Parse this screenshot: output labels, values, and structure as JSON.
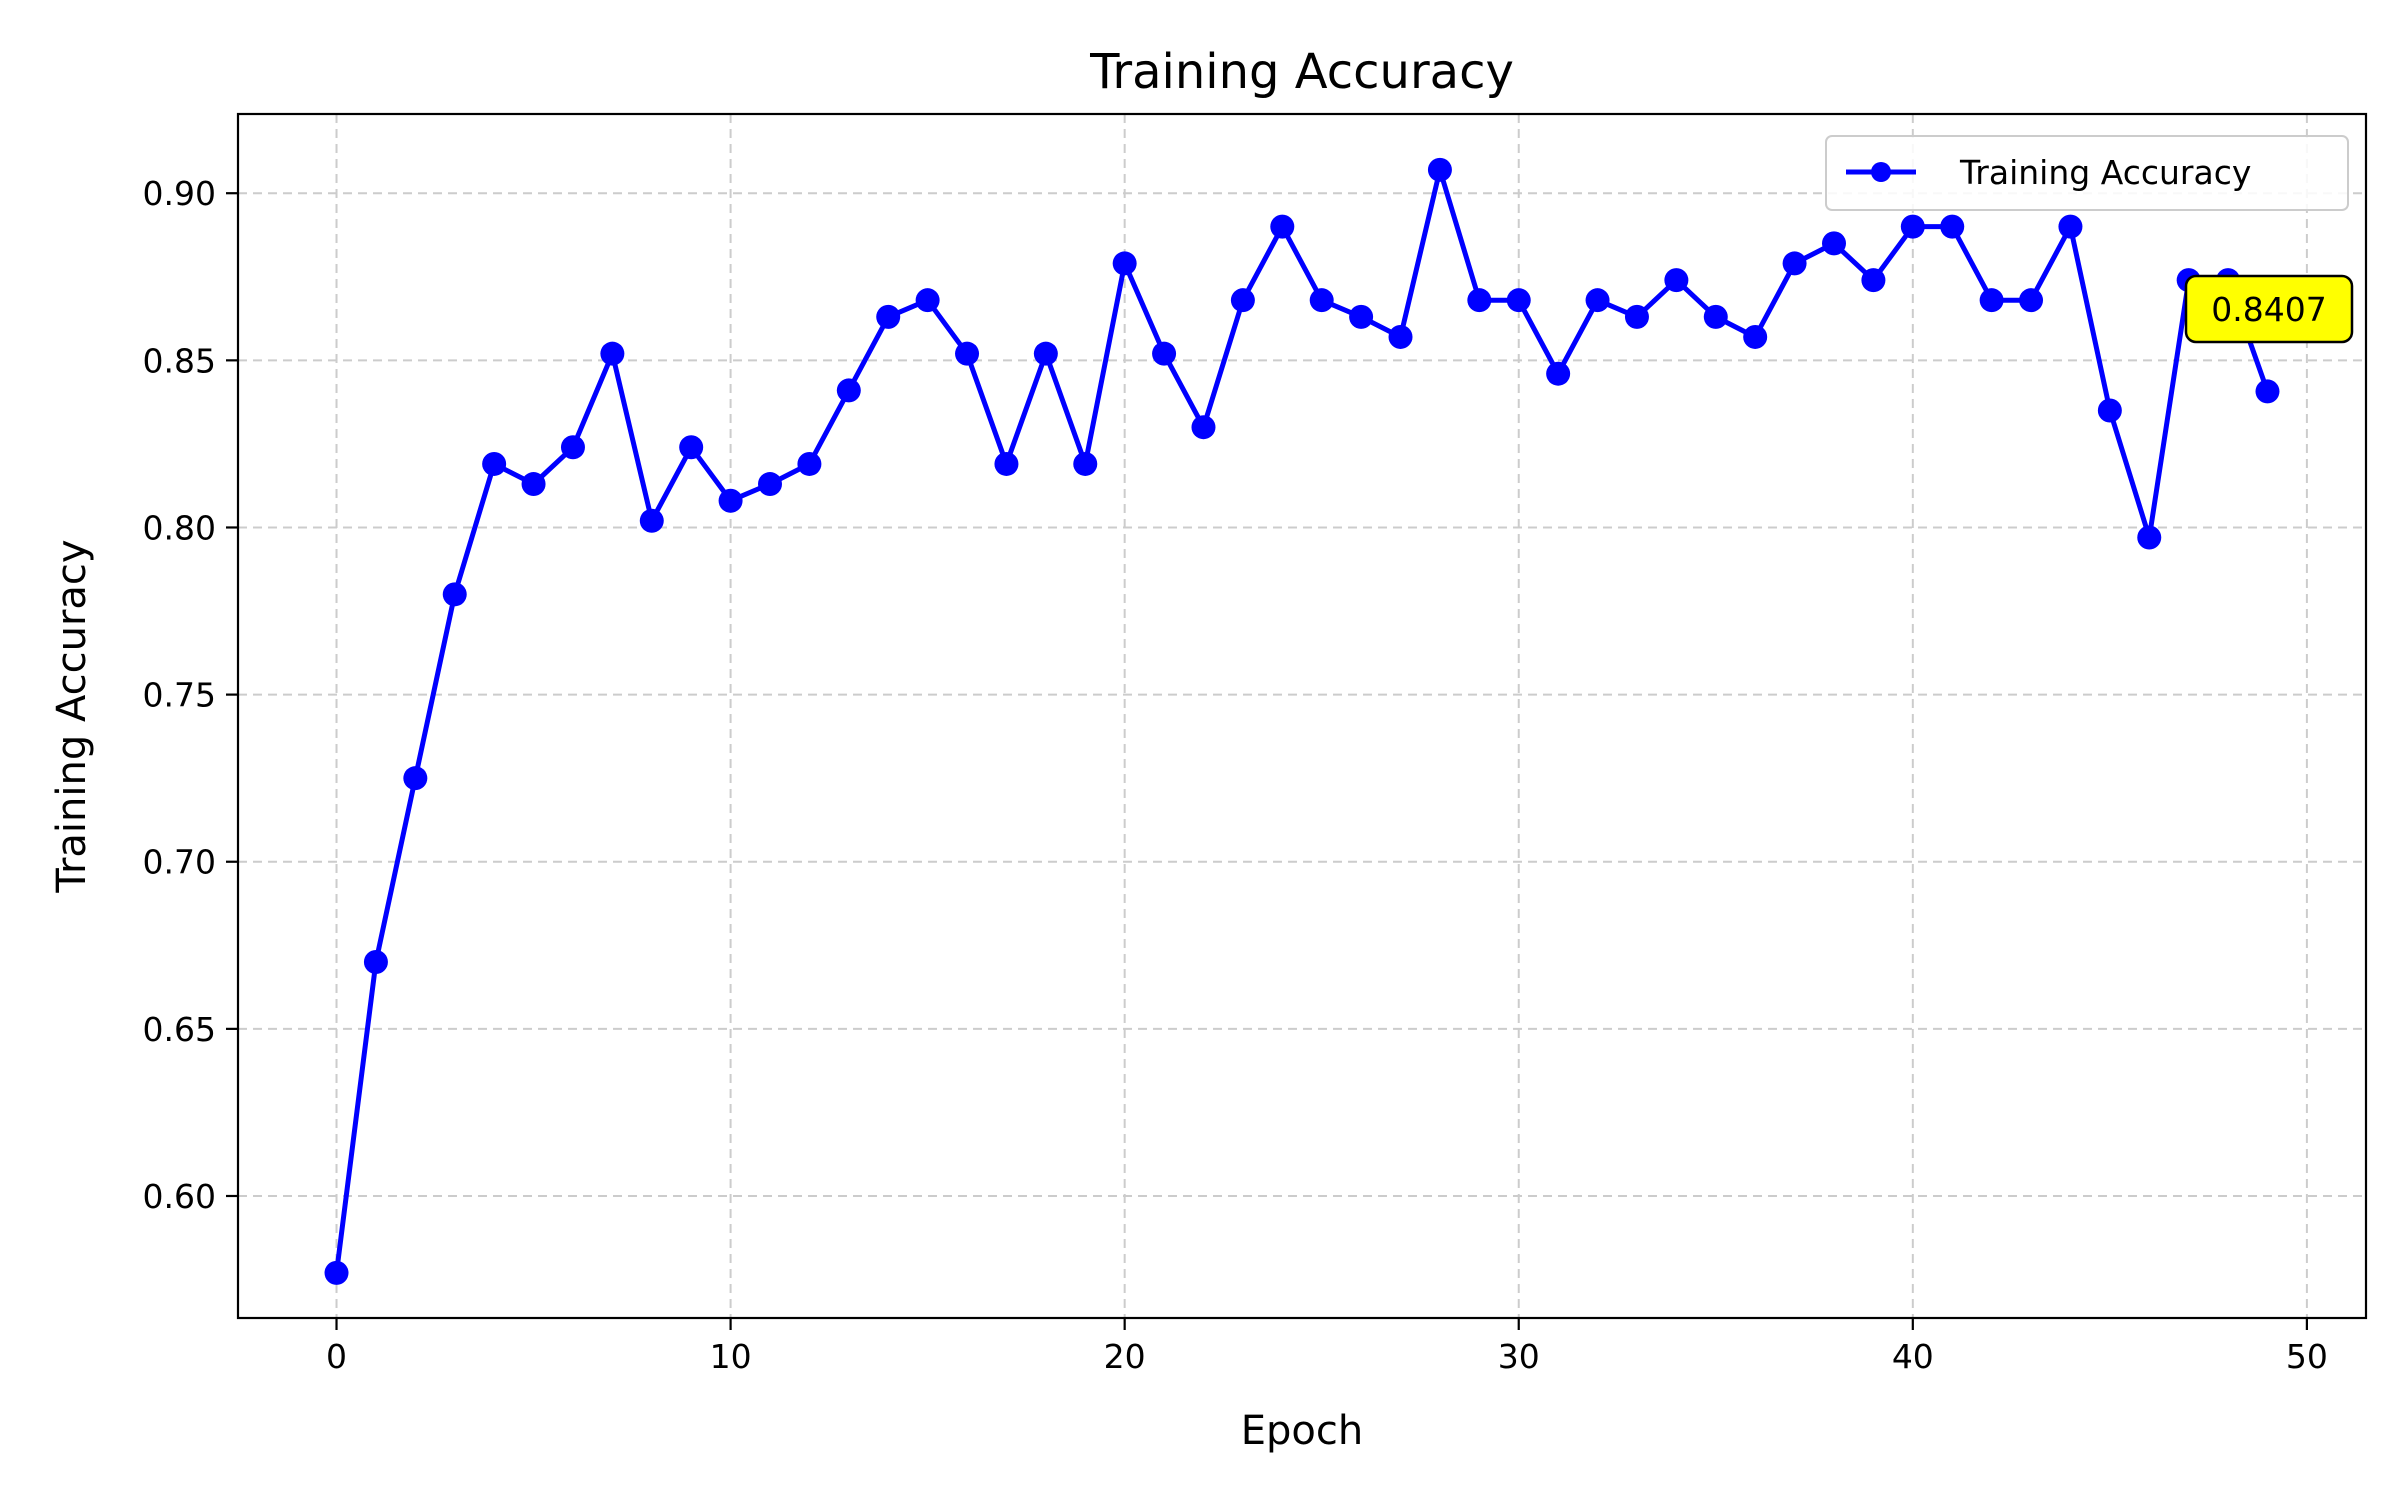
{
  "chart_data": {
    "type": "line",
    "title": "Training Accuracy",
    "xlabel": "Epoch",
    "ylabel": "Training Accuracy",
    "xlim": [
      -2.5,
      51.5
    ],
    "ylim": [
      0.5635,
      0.9237
    ],
    "x_ticks": [
      0,
      10,
      20,
      30,
      40,
      50
    ],
    "x_tick_labels": [
      "0",
      "10",
      "20",
      "30",
      "40",
      "50"
    ],
    "y_ticks": [
      0.6,
      0.65,
      0.7,
      0.75,
      0.8,
      0.85,
      0.9
    ],
    "y_tick_labels": [
      "0.60",
      "0.65",
      "0.70",
      "0.75",
      "0.80",
      "0.85",
      "0.90"
    ],
    "grid": true,
    "legend_position": "top-right",
    "series": [
      {
        "name": "Training Accuracy",
        "color": "#0000ff",
        "marker": "circle",
        "x": [
          0,
          1,
          2,
          3,
          4,
          5,
          6,
          7,
          8,
          9,
          10,
          11,
          12,
          13,
          14,
          15,
          16,
          17,
          18,
          19,
          20,
          21,
          22,
          23,
          24,
          25,
          26,
          27,
          28,
          29,
          30,
          31,
          32,
          33,
          34,
          35,
          36,
          37,
          38,
          39,
          40,
          41,
          42,
          43,
          44,
          45,
          46,
          47,
          48,
          49
        ],
        "values": [
          0.577,
          0.67,
          0.725,
          0.78,
          0.819,
          0.813,
          0.824,
          0.852,
          0.802,
          0.824,
          0.808,
          0.813,
          0.819,
          0.841,
          0.863,
          0.868,
          0.852,
          0.819,
          0.852,
          0.819,
          0.879,
          0.852,
          0.83,
          0.868,
          0.89,
          0.868,
          0.863,
          0.857,
          0.907,
          0.868,
          0.868,
          0.846,
          0.868,
          0.863,
          0.874,
          0.863,
          0.857,
          0.879,
          0.885,
          0.874,
          0.89,
          0.89,
          0.868,
          0.868,
          0.89,
          0.835,
          0.797,
          0.874,
          0.874,
          0.8407
        ]
      }
    ],
    "annotation": {
      "text": "0.8407",
      "x": 49,
      "y": 0.8407,
      "background": "#ffff00"
    }
  }
}
